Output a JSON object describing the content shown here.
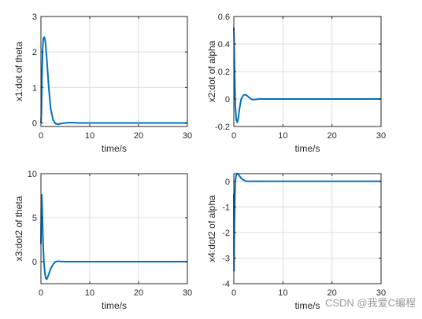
{
  "watermark": "CSDN @我爱C编程",
  "colors": {
    "series": "#0072BD",
    "grid": "#dcdcdc",
    "axis": "#262626"
  },
  "chart_data": [
    {
      "type": "line",
      "xlabel": "time/s",
      "ylabel": "x1:dot of theta",
      "xlim": [
        0,
        30
      ],
      "ylim": [
        -0.1,
        3
      ],
      "xticks": [
        0,
        10,
        20,
        30
      ],
      "yticks": [
        0,
        1,
        2,
        3
      ],
      "grid": true,
      "series": [
        {
          "values": [
            [
              0,
              0
            ],
            [
              0.1,
              0.3
            ],
            [
              0.2,
              1.2
            ],
            [
              0.35,
              2.1
            ],
            [
              0.5,
              2.38
            ],
            [
              0.7,
              2.42
            ],
            [
              0.9,
              2.3
            ],
            [
              1.2,
              1.8
            ],
            [
              1.6,
              1.0
            ],
            [
              2.0,
              0.4
            ],
            [
              2.5,
              0.08
            ],
            [
              3.0,
              -0.02
            ],
            [
              3.5,
              -0.04
            ],
            [
              4.0,
              -0.02
            ],
            [
              5,
              0.0
            ],
            [
              6,
              0.01
            ],
            [
              8,
              0.0
            ],
            [
              10,
              0.0
            ],
            [
              15,
              0.0
            ],
            [
              20,
              0.0
            ],
            [
              25,
              0.0
            ],
            [
              30,
              0.0
            ]
          ]
        }
      ]
    },
    {
      "type": "line",
      "xlabel": "time/s",
      "ylabel": "x2:dot of alpha",
      "xlim": [
        0,
        30
      ],
      "ylim": [
        -0.2,
        0.6
      ],
      "xticks": [
        0,
        10,
        20,
        30
      ],
      "yticks": [
        -0.2,
        0,
        0.2,
        0.4,
        0.6
      ],
      "grid": true,
      "series": [
        {
          "values": [
            [
              0,
              0.52
            ],
            [
              0.05,
              0.45
            ],
            [
              0.15,
              0.2
            ],
            [
              0.3,
              -0.05
            ],
            [
              0.5,
              -0.15
            ],
            [
              0.7,
              -0.17
            ],
            [
              0.9,
              -0.14
            ],
            [
              1.2,
              -0.06
            ],
            [
              1.5,
              0.0
            ],
            [
              2.0,
              0.03
            ],
            [
              2.5,
              0.03
            ],
            [
              3.0,
              0.015
            ],
            [
              3.5,
              0.0
            ],
            [
              4,
              -0.005
            ],
            [
              5,
              0.0
            ],
            [
              8,
              0.0
            ],
            [
              10,
              0.0
            ],
            [
              15,
              0.0
            ],
            [
              20,
              0.0
            ],
            [
              25,
              0.0
            ],
            [
              30,
              0.0
            ]
          ]
        }
      ]
    },
    {
      "type": "line",
      "xlabel": "time/s",
      "ylabel": "x3:dot2 of theta",
      "xlim": [
        0,
        30
      ],
      "ylim": [
        -2.5,
        10
      ],
      "xticks": [
        0,
        10,
        20,
        30
      ],
      "yticks": [
        0,
        5,
        10
      ],
      "grid": true,
      "series": [
        {
          "values": [
            [
              0,
              2
            ],
            [
              0.05,
              5
            ],
            [
              0.1,
              7.5
            ],
            [
              0.15,
              7.6
            ],
            [
              0.2,
              7
            ],
            [
              0.3,
              5
            ],
            [
              0.45,
              2
            ],
            [
              0.6,
              0
            ],
            [
              0.8,
              -1.3
            ],
            [
              1.0,
              -1.9
            ],
            [
              1.2,
              -2.0
            ],
            [
              1.5,
              -1.6
            ],
            [
              2.0,
              -0.8
            ],
            [
              2.5,
              -0.3
            ],
            [
              3.0,
              0.0
            ],
            [
              3.5,
              0.05
            ],
            [
              4,
              0.02
            ],
            [
              5,
              0.0
            ],
            [
              8,
              0.0
            ],
            [
              10,
              0.0
            ],
            [
              15,
              0.0
            ],
            [
              20,
              0.0
            ],
            [
              25,
              0.0
            ],
            [
              30,
              0.0
            ]
          ]
        }
      ]
    },
    {
      "type": "line",
      "xlabel": "time/s",
      "ylabel": "x4:dot2 of alpha",
      "xlim": [
        0,
        30
      ],
      "ylim": [
        -4,
        0.3
      ],
      "xticks": [
        0,
        10,
        20,
        30
      ],
      "yticks": [
        -4,
        -3,
        -2,
        -1,
        0
      ],
      "grid": true,
      "series": [
        {
          "values": [
            [
              0,
              -0.5
            ],
            [
              0.04,
              -3.5
            ],
            [
              0.1,
              -2.0
            ],
            [
              0.2,
              -0.7
            ],
            [
              0.3,
              0.0
            ],
            [
              0.45,
              0.2
            ],
            [
              0.6,
              0.3
            ],
            [
              0.8,
              0.3
            ],
            [
              1.0,
              0.25
            ],
            [
              1.5,
              0.12
            ],
            [
              2.0,
              0.05
            ],
            [
              2.5,
              0.0
            ],
            [
              3.0,
              0.0
            ],
            [
              5,
              0.0
            ],
            [
              10,
              0.0
            ],
            [
              15,
              0.0
            ],
            [
              20,
              0.0
            ],
            [
              25,
              0.0
            ],
            [
              30,
              0.0
            ]
          ]
        }
      ]
    }
  ]
}
